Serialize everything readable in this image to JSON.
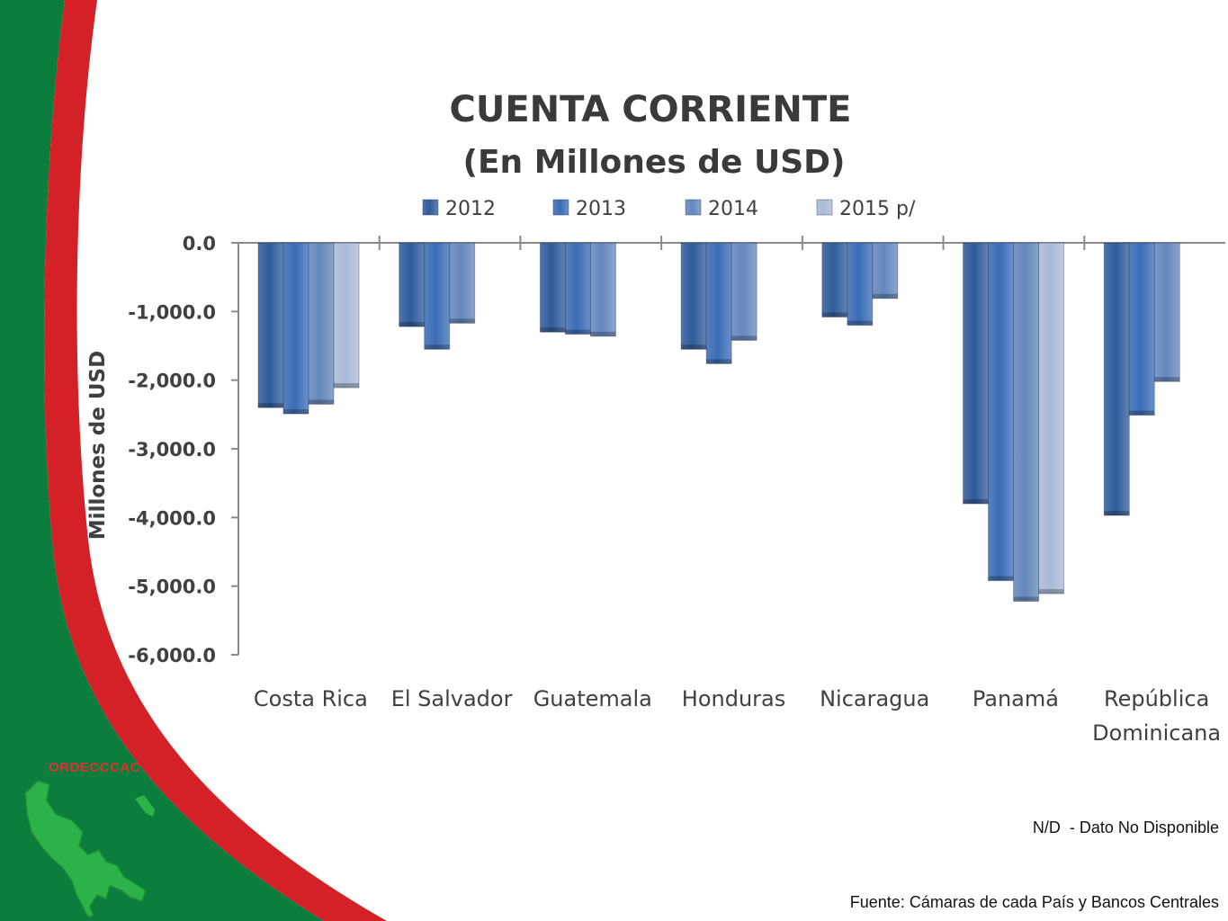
{
  "brand": "ORDECCCAC",
  "notes": {
    "nd": "N/D  - Dato No Disponible",
    "source": "Fuente: Cámaras de cada País y Bancos Centrales"
  },
  "colors": {
    "green": "#0b7d3c",
    "red": "#d42027",
    "series": [
      "#2f5b9a",
      "#3a6cb6",
      "#6487bd",
      "#a9b9d6"
    ]
  },
  "chart_data": {
    "type": "bar",
    "title": "CUENTA CORRIENTE",
    "subtitle": "(En Millones de USD)",
    "ylabel": "Millones de USD",
    "xlabel": "",
    "ylim": [
      -6000,
      0
    ],
    "yticks": [
      "0.0",
      "-1,000.0",
      "-2,000.0",
      "-3,000.0",
      "-4,000.0",
      "-5,000.0",
      "-6,000.0"
    ],
    "legend_position": "top",
    "categories": [
      [
        "Costa Rica"
      ],
      [
        "El Salvador"
      ],
      [
        "Guatemala"
      ],
      [
        "Honduras"
      ],
      [
        "Nicaragua"
      ],
      [
        "Panamá"
      ],
      [
        "República",
        "Dominicana"
      ]
    ],
    "series": [
      {
        "name": "2012",
        "values": [
          -2400,
          -1220,
          -1300,
          -1550,
          -1080,
          -3800,
          -3970
        ]
      },
      {
        "name": "2013",
        "values": [
          -2490,
          -1550,
          -1330,
          -1760,
          -1200,
          -4920,
          -2510
        ]
      },
      {
        "name": "2014",
        "values": [
          -2350,
          -1170,
          -1360,
          -1420,
          -810,
          -5220,
          -2020
        ]
      },
      {
        "name": "2015 p/",
        "values": [
          -2110,
          null,
          null,
          null,
          null,
          -5110,
          null
        ]
      }
    ]
  }
}
